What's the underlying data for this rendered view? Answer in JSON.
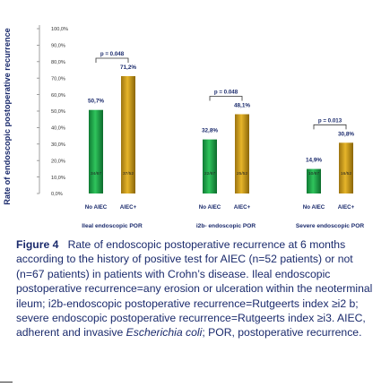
{
  "chart_data": {
    "type": "bar",
    "ylabel": "Rate of endoscopic postoperative recurrence",
    "ylim": [
      0,
      100
    ],
    "yticks": [
      "0,0%",
      "10,0%",
      "20,0%",
      "30,0%",
      "40,0%",
      "50,0%",
      "60,0%",
      "70,0%",
      "80,0%",
      "90,0%",
      "100,0%"
    ],
    "groups": [
      {
        "name": "Ileal endoscopic POR",
        "bars": [
          {
            "label": "No AIEC",
            "value": 50.7,
            "value_label": "50,7%",
            "fraction": "34/67",
            "color": "#1fa64a"
          },
          {
            "label": "AIEC+",
            "value": 71.2,
            "value_label": "71,2%",
            "fraction": "37/52",
            "color": "#d4a017"
          }
        ],
        "p_value": "p = 0.048"
      },
      {
        "name": "i2b- endoscopic POR",
        "bars": [
          {
            "label": "No AIEC",
            "value": 32.8,
            "value_label": "32,8%",
            "fraction": "22/67",
            "color": "#1fa64a"
          },
          {
            "label": "AIEC+",
            "value": 48.1,
            "value_label": "48,1%",
            "fraction": "25/52",
            "color": "#d4a017"
          }
        ],
        "p_value": "p = 0.048"
      },
      {
        "name": "Severe endoscopic POR",
        "bars": [
          {
            "label": "No AIEC",
            "value": 14.9,
            "value_label": "14,9%",
            "fraction": "10/67",
            "color": "#1fa64a"
          },
          {
            "label": "AIEC+",
            "value": 30.8,
            "value_label": "30,8%",
            "fraction": "16/52",
            "color": "#d4a017"
          }
        ],
        "p_value": "p = 0.013"
      }
    ]
  },
  "caption": {
    "label": "Figure 4",
    "text_before_italic": "Rate of endoscopic postoperative recurrence at 6 months according to the history of positive test for AIEC (n=52 patients) or not (n=67 patients) in patients with Crohn’s disease. Ileal endoscopic postoperative recurrence=any erosion or ulceration within the neoterminal ileum; i2b-endoscopic postoperative recurrence=Rutgeerts index ≥i2 b; severe endoscopic postoperative recurrence=Rutgeerts index ≥i3. AIEC, adherent and invasive ",
    "italic": "Escherichia coli",
    "text_after_italic": "; POR, postoperative recurrence."
  }
}
